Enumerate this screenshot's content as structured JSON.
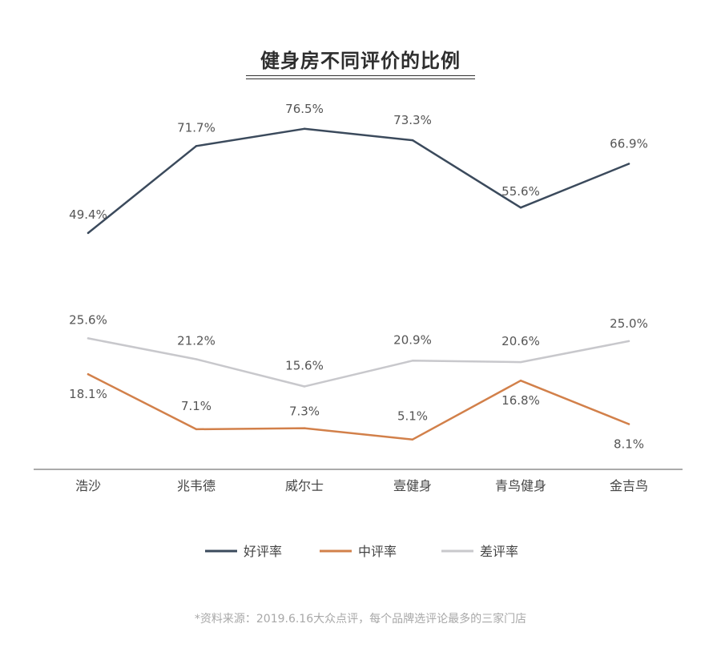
{
  "title": "健身房不同评价的比例",
  "source": "*资料来源：2019.6.16大众点评，每个品牌选评论最多的三家门店",
  "chart_data": {
    "type": "line",
    "categories": [
      "浩沙",
      "兆韦德",
      "威尔士",
      "壹健身",
      "青鸟健身",
      "金吉鸟"
    ],
    "series": [
      {
        "name": "好评率",
        "color": "#3b4a5c",
        "values": [
          49.4,
          71.7,
          76.5,
          73.3,
          55.6,
          66.9
        ],
        "labels": [
          "49.4%",
          "71.7%",
          "76.5%",
          "73.3%",
          "55.6%",
          "66.9%"
        ]
      },
      {
        "name": "中评率",
        "color": "#d2804a",
        "values": [
          18.1,
          7.1,
          7.3,
          5.1,
          16.8,
          8.1
        ],
        "labels": [
          "18.1%",
          "7.1%",
          "7.3%",
          "5.1%",
          "16.8%",
          "8.1%"
        ]
      },
      {
        "name": "差评率",
        "color": "#c8c8cc",
        "values": [
          25.6,
          21.2,
          15.6,
          20.9,
          20.6,
          25.0
        ],
        "labels": [
          "25.6%",
          "21.2%",
          "15.6%",
          "20.9%",
          "20.6%",
          "25.0%"
        ]
      }
    ],
    "grid": false,
    "legend": "bottom"
  }
}
